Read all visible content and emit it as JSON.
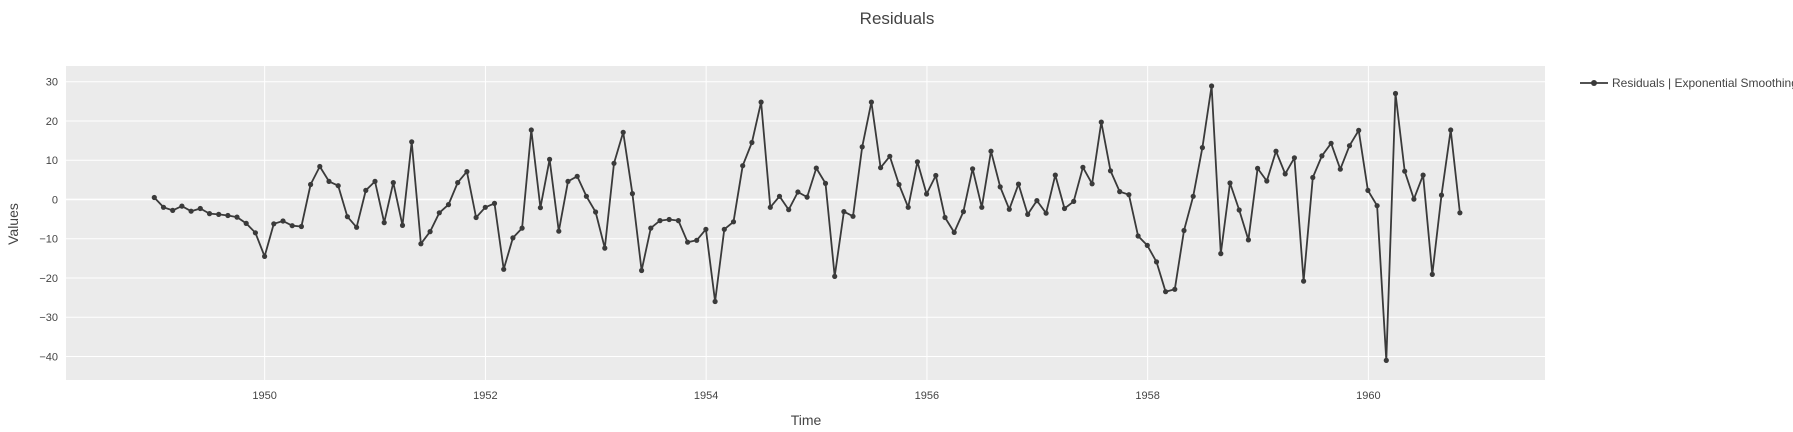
{
  "chart_data": {
    "type": "line",
    "title": "Residuals",
    "xlabel": "Time",
    "ylabel": "Values",
    "xlim": [
      1948.2,
      1961.6
    ],
    "ylim": [
      -46,
      34
    ],
    "xticks": [
      1950,
      1952,
      1954,
      1956,
      1958,
      1960
    ],
    "yticks": [
      -40,
      -30,
      -20,
      -10,
      0,
      10,
      20,
      30
    ],
    "grid": true,
    "legend_position": "top-right",
    "colors": {
      "line": "#3a3a3a",
      "plot_bg": "#ebebeb",
      "grid": "#ffffff"
    },
    "series": [
      {
        "name": "Residuals | Exponential Smoothing",
        "x_start": 1949.0,
        "x_step": 0.0833,
        "values": [
          0.5,
          -2.0,
          -2.8,
          -1.7,
          -3.0,
          -2.3,
          -3.6,
          -3.8,
          -4.1,
          -4.5,
          -6.1,
          -8.5,
          -14.5,
          -6.2,
          -5.5,
          -6.7,
          -6.9,
          3.8,
          8.4,
          4.6,
          3.5,
          -4.4,
          -7.1,
          2.3,
          4.6,
          -5.9,
          4.3,
          -6.6,
          14.7,
          -11.3,
          -8.2,
          -3.4,
          -1.3,
          4.3,
          7.1,
          -4.6,
          -2.0,
          -1.0,
          -17.8,
          -9.8,
          -7.3,
          17.7,
          -2.1,
          10.2,
          -8.1,
          4.6,
          5.9,
          0.8,
          -3.2,
          -12.4,
          9.2,
          17.1,
          1.5,
          -18.1,
          -7.3,
          -5.4,
          -5.1,
          -5.4,
          -10.9,
          -10.4,
          -7.6,
          -26.0,
          -7.6,
          -5.7,
          8.6,
          14.5,
          24.8,
          -2.0,
          0.8,
          -2.6,
          1.9,
          0.6,
          8.0,
          4.1,
          -19.6,
          -3.1,
          -4.3,
          13.4,
          24.8,
          8.1,
          11.0,
          3.8,
          -2.0,
          9.6,
          1.4,
          6.1,
          -4.6,
          -8.4,
          -3.1,
          7.8,
          -2.0,
          12.3,
          3.2,
          -2.5,
          3.9,
          -3.8,
          -0.3,
          -3.5,
          6.2,
          -2.3,
          -0.5,
          8.2,
          4.0,
          19.7,
          7.3,
          2.0,
          1.2,
          -9.3,
          -11.7,
          -15.9,
          -23.5,
          -22.9,
          -7.9,
          0.8,
          13.2,
          28.9,
          -13.8,
          4.2,
          -2.7,
          -10.3,
          7.9,
          4.7,
          12.3,
          6.5,
          10.6,
          -20.8,
          5.6,
          11.1,
          14.3,
          7.7,
          13.7,
          17.6,
          2.3,
          -1.6,
          -41.0,
          27.0,
          7.2,
          0.1,
          6.2,
          -19.1,
          1.1,
          17.7,
          -3.4
        ]
      }
    ]
  }
}
